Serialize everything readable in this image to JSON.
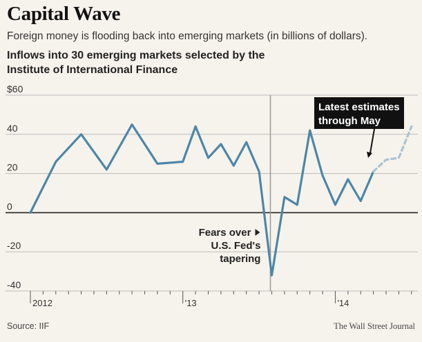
{
  "title": "Capital Wave",
  "subtitle": "Foreign money is flooding back into emerging markets (in billions of dollars).",
  "chart_data": {
    "type": "line",
    "title": "Inflows into 30 emerging markets selected by the Institute of International Finance",
    "xlabel": "",
    "ylabel": "",
    "ylim": [
      -40,
      60
    ],
    "y_ticks": [
      "$60",
      "40",
      "20",
      "0",
      "-20",
      "-40"
    ],
    "y_tick_values": [
      60,
      40,
      20,
      0,
      -20,
      -40
    ],
    "x_tick_labels": [
      {
        "label": "2012",
        "month_index": 0
      },
      {
        "label": "'13",
        "month_index": 12
      },
      {
        "label": "'14",
        "month_index": 24
      }
    ],
    "grid": true,
    "series": [
      {
        "style": "solid",
        "color": "#4c86a8",
        "x": [
          0,
          2,
          4,
          6,
          8,
          10,
          12,
          13,
          14,
          15,
          16,
          17,
          18,
          19,
          20,
          21,
          22,
          23,
          24,
          25,
          26,
          27
        ],
        "values": [
          0,
          26,
          40,
          22,
          45,
          25,
          26,
          44,
          28,
          35,
          24,
          36,
          21,
          -32,
          8,
          4,
          42,
          19,
          4,
          17,
          6,
          21
        ]
      },
      {
        "style": "dashed",
        "color": "#a9c3d5",
        "x": [
          27,
          28,
          29,
          30
        ],
        "values": [
          21,
          27,
          28,
          44
        ]
      }
    ],
    "annotations": {
      "tapering": {
        "lines": [
          "Fears over",
          "U.S. Fed's",
          "tapering"
        ],
        "marker_month_index": 19
      },
      "estimates": {
        "lines": [
          "Latest estimates",
          "through May"
        ]
      }
    }
  },
  "source": "Source: IIF",
  "credit": "The Wall Street Journal"
}
